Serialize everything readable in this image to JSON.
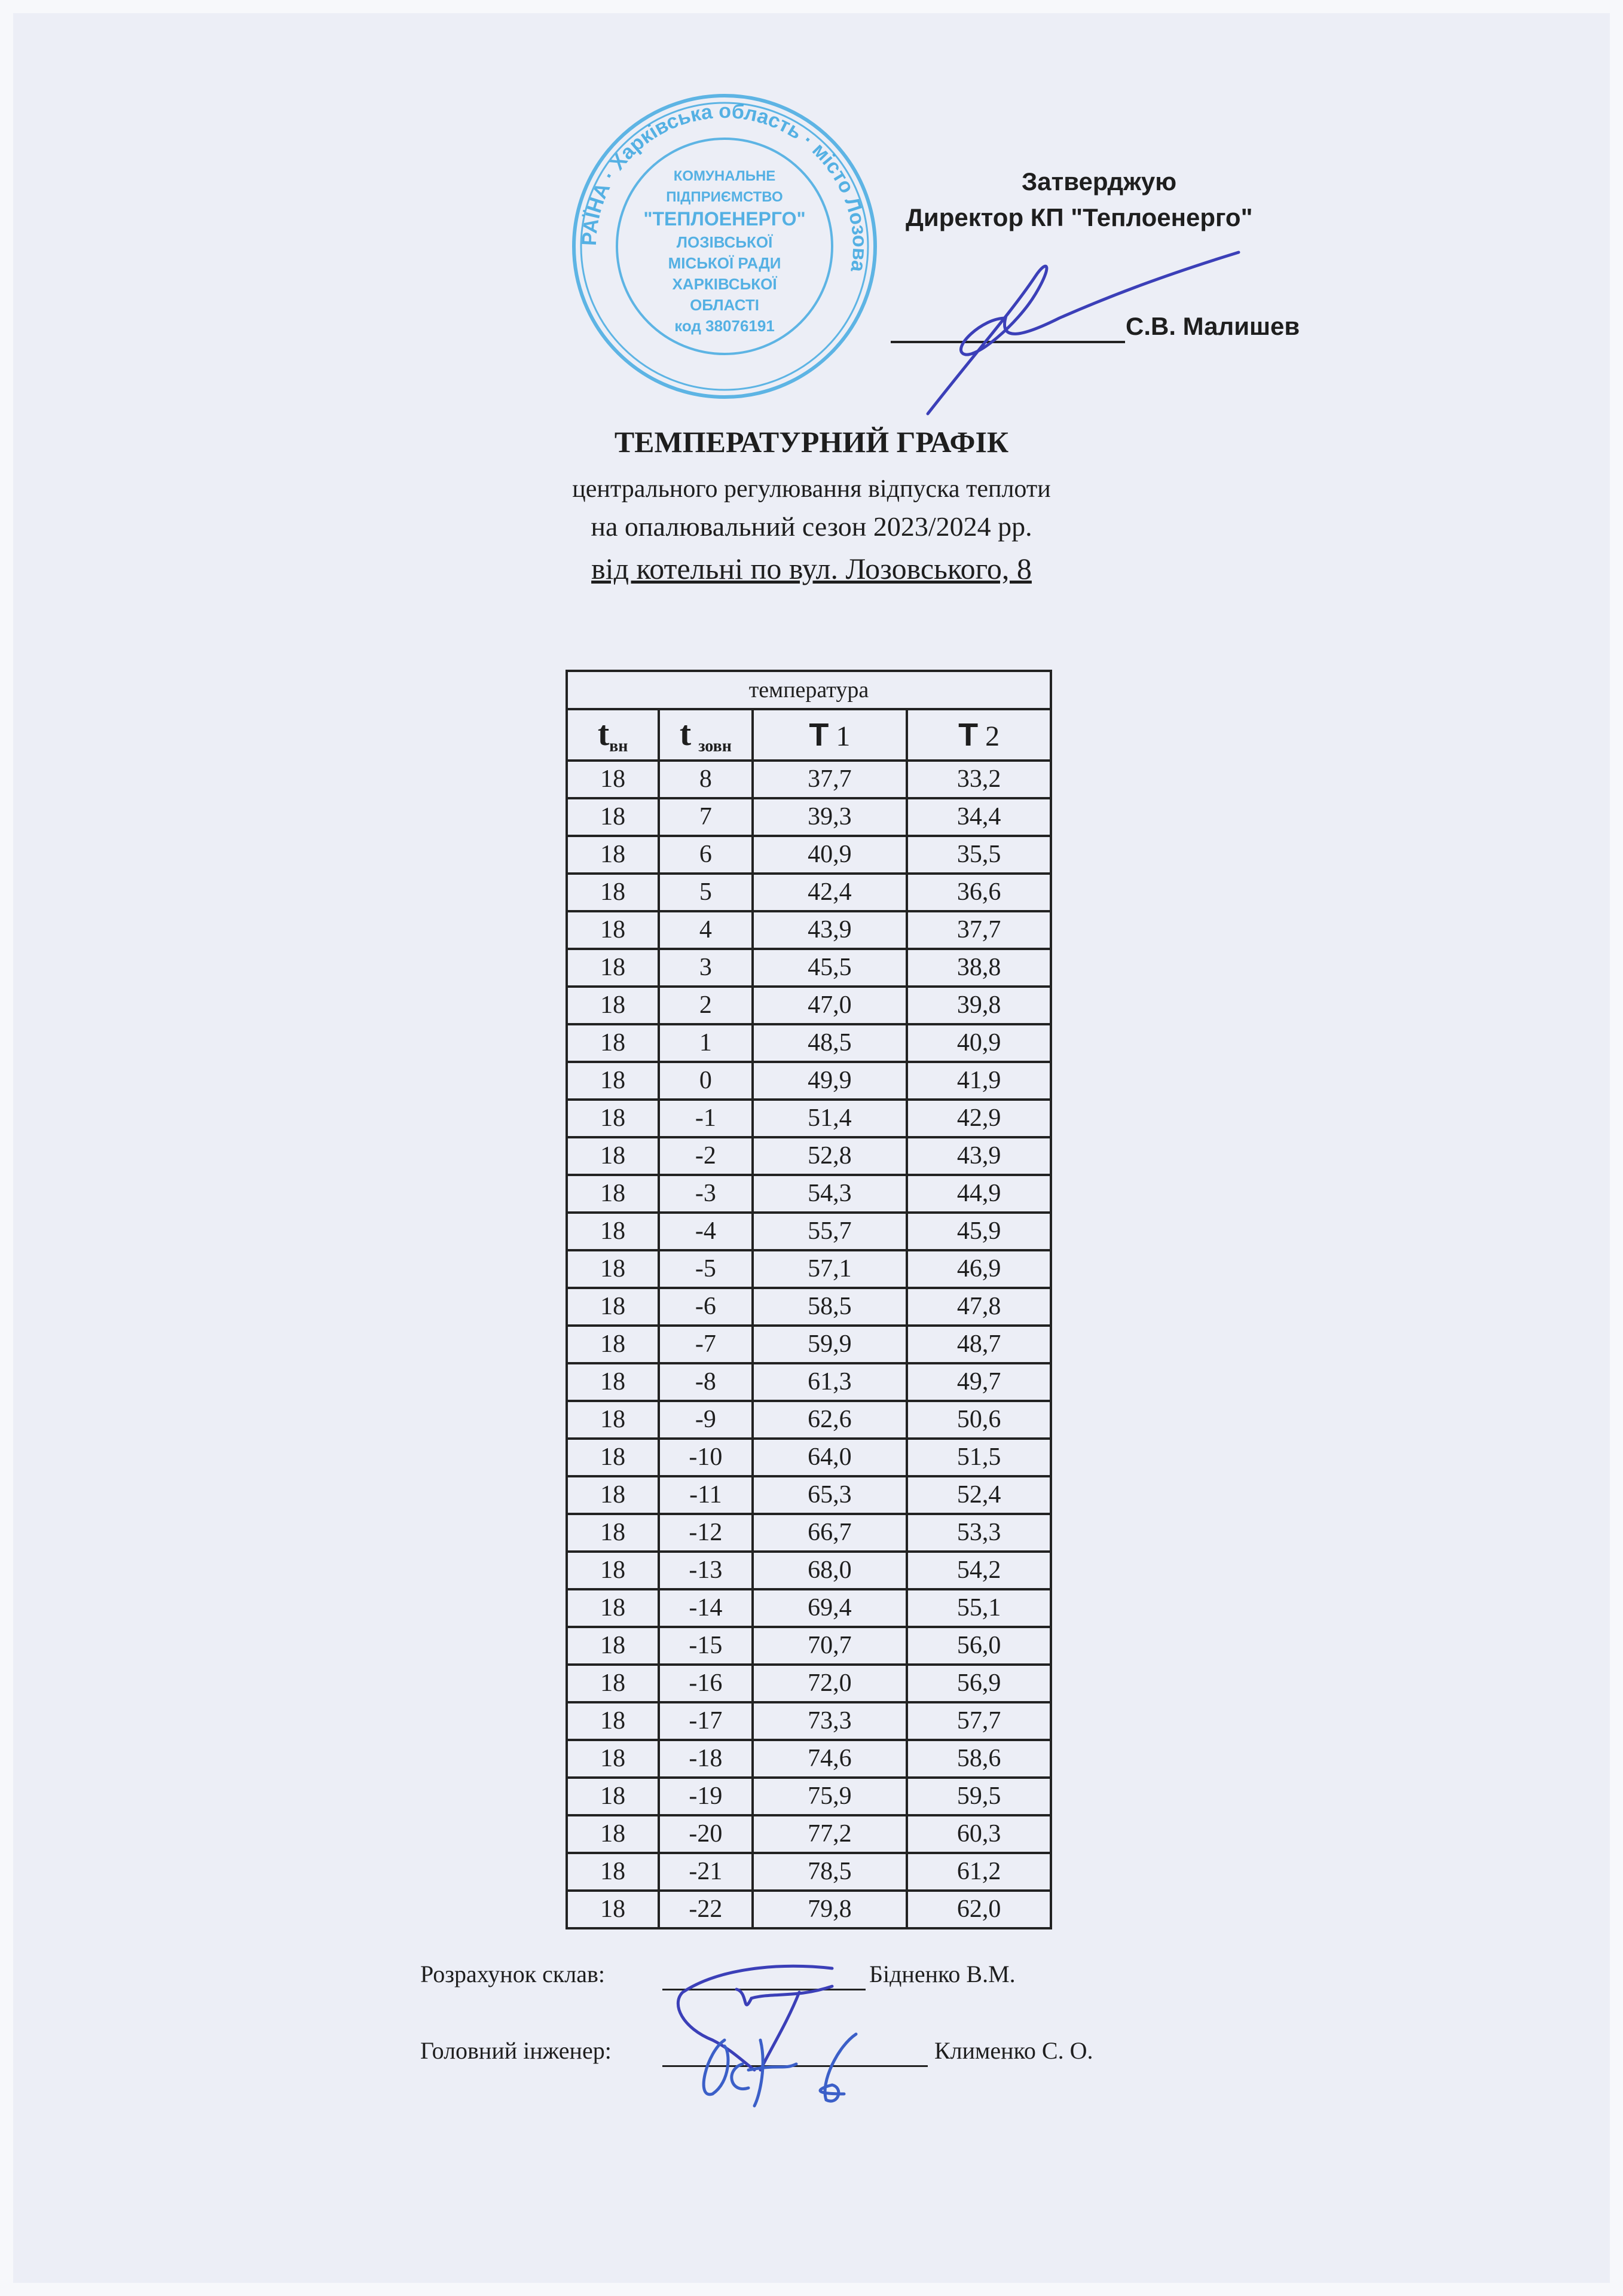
{
  "approval": {
    "approve_label": "Затверджую",
    "position": "Директор КП \"Теплоенерго\"",
    "signer": "С.В. Малишев"
  },
  "stamp": {
    "outer_text": "УКРАЇНА  Харківська область  місто Лозова",
    "inner_lines": [
      "КОМУНАЛЬНЕ",
      "ПІДПРИЄМСТВО",
      "\"ТЕПЛОЕНЕРГО\"",
      "ЛОЗІВСЬКОЇ",
      "МІСЬКОЇ РАДИ",
      "ХАРКІВСЬКОЇ",
      "ОБЛАСТІ",
      "код 38076191"
    ],
    "color": "#3aa6e0"
  },
  "header": {
    "title": "ТЕМПЕРАТУРНИЙ ГРАФІК",
    "subtitle1": "центрального регулювання відпуска теплоти",
    "subtitle2": "на опалювальний сезон 2023/2024 рр.",
    "subtitle3": "від котельні по вул. Лозовського, 8"
  },
  "table": {
    "caption": "температура",
    "columns": [
      {
        "main": "t",
        "sub": "вн"
      },
      {
        "main": "t",
        "sub": "зовн"
      },
      {
        "main": "Т",
        "sub": "1"
      },
      {
        "main": "Т",
        "sub": "2"
      }
    ],
    "rows": [
      [
        "18",
        "8",
        "37,7",
        "33,2"
      ],
      [
        "18",
        "7",
        "39,3",
        "34,4"
      ],
      [
        "18",
        "6",
        "40,9",
        "35,5"
      ],
      [
        "18",
        "5",
        "42,4",
        "36,6"
      ],
      [
        "18",
        "4",
        "43,9",
        "37,7"
      ],
      [
        "18",
        "3",
        "45,5",
        "38,8"
      ],
      [
        "18",
        "2",
        "47,0",
        "39,8"
      ],
      [
        "18",
        "1",
        "48,5",
        "40,9"
      ],
      [
        "18",
        "0",
        "49,9",
        "41,9"
      ],
      [
        "18",
        "-1",
        "51,4",
        "42,9"
      ],
      [
        "18",
        "-2",
        "52,8",
        "43,9"
      ],
      [
        "18",
        "-3",
        "54,3",
        "44,9"
      ],
      [
        "18",
        "-4",
        "55,7",
        "45,9"
      ],
      [
        "18",
        "-5",
        "57,1",
        "46,9"
      ],
      [
        "18",
        "-6",
        "58,5",
        "47,8"
      ],
      [
        "18",
        "-7",
        "59,9",
        "48,7"
      ],
      [
        "18",
        "-8",
        "61,3",
        "49,7"
      ],
      [
        "18",
        "-9",
        "62,6",
        "50,6"
      ],
      [
        "18",
        "-10",
        "64,0",
        "51,5"
      ],
      [
        "18",
        "-11",
        "65,3",
        "52,4"
      ],
      [
        "18",
        "-12",
        "66,7",
        "53,3"
      ],
      [
        "18",
        "-13",
        "68,0",
        "54,2"
      ],
      [
        "18",
        "-14",
        "69,4",
        "55,1"
      ],
      [
        "18",
        "-15",
        "70,7",
        "56,0"
      ],
      [
        "18",
        "-16",
        "72,0",
        "56,9"
      ],
      [
        "18",
        "-17",
        "73,3",
        "57,7"
      ],
      [
        "18",
        "-18",
        "74,6",
        "58,6"
      ],
      [
        "18",
        "-19",
        "75,9",
        "59,5"
      ],
      [
        "18",
        "-20",
        "77,2",
        "60,3"
      ],
      [
        "18",
        "-21",
        "78,5",
        "61,2"
      ],
      [
        "18",
        "-22",
        "79,8",
        "62,0"
      ]
    ]
  },
  "footer": {
    "calc_label": "Розрахунок склав:",
    "calc_name": "Бідненко В.М.",
    "engineer_label": "Головний інженер:",
    "engineer_name": "Клименко С. О."
  },
  "ink_color": "#3b3fb8"
}
